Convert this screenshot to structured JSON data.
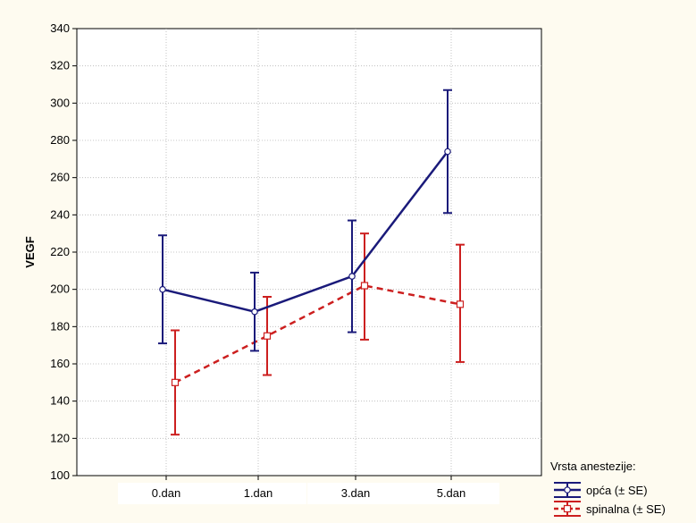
{
  "chart_data": {
    "type": "line",
    "title": "",
    "xlabel": "",
    "ylabel": "VEGF",
    "categories": [
      "0.dan",
      "1.dan",
      "3.dan",
      "5.dan"
    ],
    "ylim": [
      100,
      340
    ],
    "yticks": [
      100,
      120,
      140,
      160,
      180,
      200,
      220,
      240,
      260,
      280,
      300,
      320,
      340
    ],
    "grid": true,
    "legend": {
      "title": "Vrsta anestezije:",
      "placement": "bottom-right"
    },
    "series": [
      {
        "name": "opća (± SE)",
        "color": "#1a1a7a",
        "line_style": "solid",
        "marker": "circle",
        "values": [
          200,
          188,
          207,
          274
        ],
        "error_low": [
          171,
          167,
          177,
          241
        ],
        "error_high": [
          229,
          209,
          237,
          307
        ]
      },
      {
        "name": "spinalna (± SE)",
        "color": "#cc1f1f",
        "line_style": "dashed",
        "marker": "square",
        "values": [
          150,
          175,
          202,
          192
        ],
        "error_low": [
          122,
          154,
          173,
          161
        ],
        "error_high": [
          178,
          196,
          230,
          224
        ]
      }
    ]
  }
}
